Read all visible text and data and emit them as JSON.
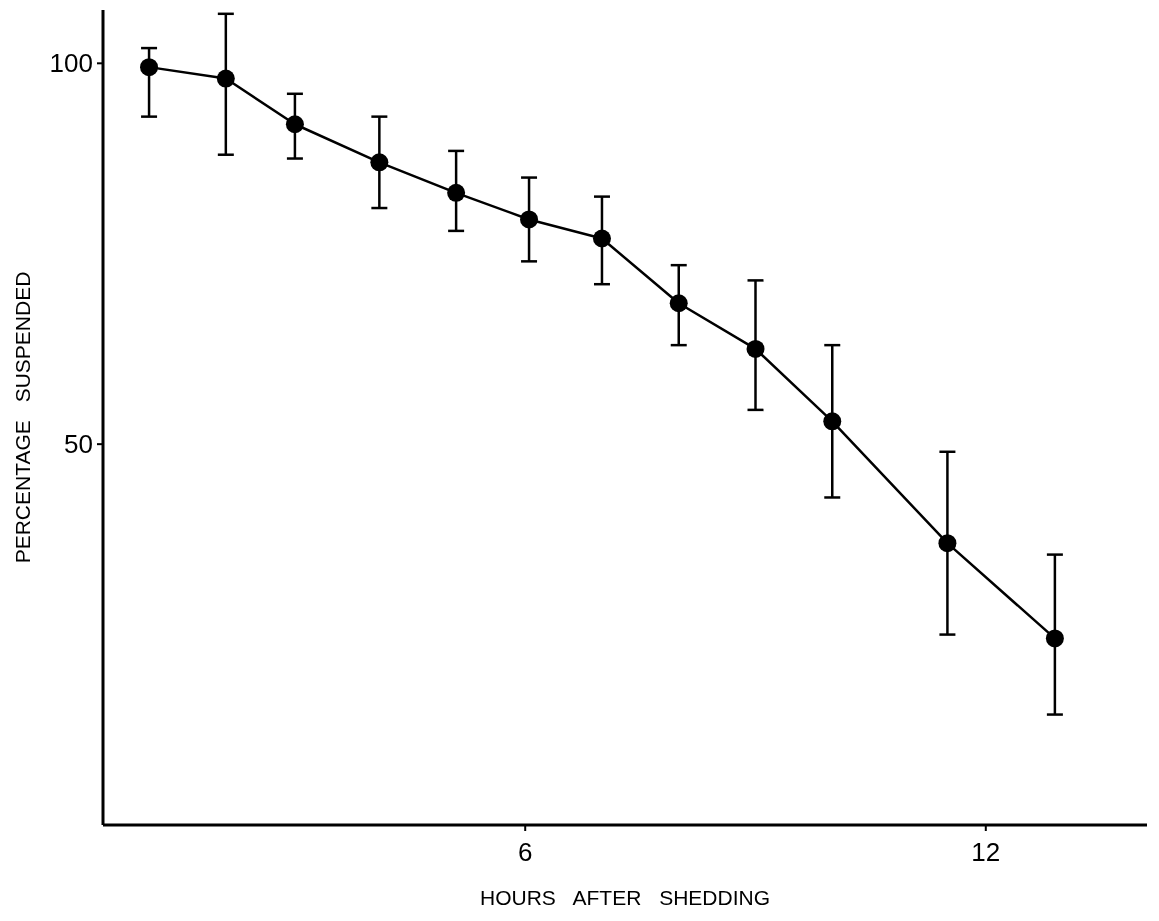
{
  "chart_data": {
    "type": "line",
    "xlabel": "HOURS AFTER SHEDDING",
    "ylabel": "PERCENTAGE SUSPENDED",
    "xlim": [
      0.5,
      14.1
    ],
    "ylim": [
      0,
      107
    ],
    "xticks": [
      6,
      12
    ],
    "yticks": [
      50,
      100
    ],
    "marker": "circle",
    "line_style": "solid",
    "series": [
      {
        "color": "#000000",
        "x": [
          1.1,
          2.1,
          3,
          4.1,
          5.1,
          6.05,
          7,
          8,
          9,
          10,
          11.5,
          12.9
        ],
        "values": [
          99.5,
          98,
          92,
          87,
          83,
          79.5,
          77,
          68.5,
          62.5,
          53,
          37,
          24.5
        ],
        "errors": [
          [
            93,
            102
          ],
          [
            88,
            106.5
          ],
          [
            87.5,
            96
          ],
          [
            81,
            93
          ],
          [
            78,
            88.5
          ],
          [
            74,
            85
          ],
          [
            71,
            82.5
          ],
          [
            63,
            73.5
          ],
          [
            54.5,
            71.5
          ],
          [
            43,
            63
          ],
          [
            25,
            49
          ],
          [
            14.5,
            35.5
          ]
        ]
      }
    ]
  }
}
